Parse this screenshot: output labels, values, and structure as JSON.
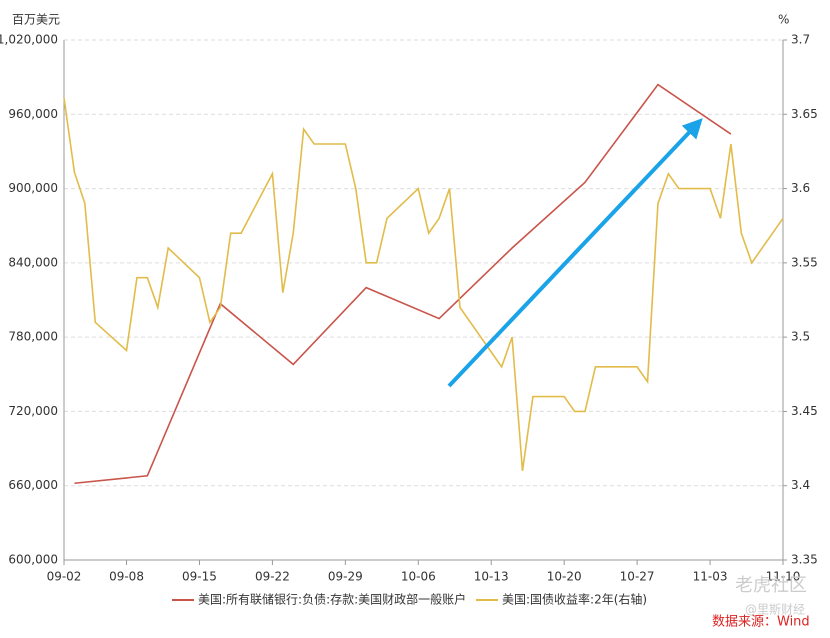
{
  "chart_data": {
    "type": "line",
    "y_label": "百万美元",
    "y2_label": "%",
    "xlim": [
      0,
      69
    ],
    "xticks": [
      {
        "value": 0,
        "label": "09-02"
      },
      {
        "value": 6,
        "label": "09-08"
      },
      {
        "value": 13,
        "label": "09-15"
      },
      {
        "value": 20,
        "label": "09-22"
      },
      {
        "value": 27,
        "label": "09-29"
      },
      {
        "value": 34,
        "label": "10-06"
      },
      {
        "value": 41,
        "label": "10-13"
      },
      {
        "value": 48,
        "label": "10-20"
      },
      {
        "value": 55,
        "label": "10-27"
      },
      {
        "value": 62,
        "label": "11-03"
      },
      {
        "value": 69,
        "label": "11-10"
      }
    ],
    "ylim": [
      600000,
      1020000
    ],
    "yticks": [
      {
        "value": 600000,
        "label": "600,000"
      },
      {
        "value": 660000,
        "label": "660,000"
      },
      {
        "value": 720000,
        "label": "720,000"
      },
      {
        "value": 780000,
        "label": "780,000"
      },
      {
        "value": 840000,
        "label": "840,000"
      },
      {
        "value": 900000,
        "label": "900,000"
      },
      {
        "value": 960000,
        "label": "960,000"
      },
      {
        "value": 1020000,
        "label": "1,020,000"
      }
    ],
    "y2lim": [
      3.35,
      3.7
    ],
    "y2ticks": [
      3.35,
      3.4,
      3.45,
      3.5,
      3.55,
      3.6,
      3.65,
      3.7
    ],
    "grid": true,
    "series": [
      {
        "name": "美国:所有联储银行:负债:存款:美国财政部一般账户",
        "color": "#c9544a",
        "x": [
          1,
          8,
          15,
          22,
          29,
          36,
          43,
          50,
          57,
          64
        ],
        "values": [
          662000,
          668000,
          807000,
          758000,
          820000,
          795000,
          852000,
          905000,
          984000,
          944000
        ]
      },
      {
        "name": "美国:国债收益率:2年(右轴)",
        "color": "#e2bc4a",
        "axis": "y2",
        "x": [
          0,
          1,
          2,
          3,
          6,
          7,
          8,
          9,
          10,
          13,
          14,
          15,
          16,
          17,
          20,
          21,
          22,
          23,
          24,
          27,
          28,
          29,
          30,
          31,
          34,
          35,
          36,
          37,
          38,
          42,
          43,
          44,
          45,
          48,
          49,
          50,
          51,
          55,
          56,
          57,
          58,
          59,
          62,
          63,
          64,
          65,
          66,
          69
        ],
        "values": [
          3.661,
          3.611,
          3.59,
          3.51,
          3.491,
          3.54,
          3.54,
          3.52,
          3.56,
          3.54,
          3.51,
          3.52,
          3.57,
          3.57,
          3.61,
          3.53,
          3.57,
          3.64,
          3.63,
          3.63,
          3.6,
          3.55,
          3.55,
          3.58,
          3.6,
          3.57,
          3.58,
          3.6,
          3.52,
          3.48,
          3.5,
          3.41,
          3.46,
          3.46,
          3.45,
          3.45,
          3.48,
          3.48,
          3.47,
          3.59,
          3.61,
          3.6,
          3.6,
          3.58,
          3.63,
          3.57,
          3.55,
          3.58
        ]
      }
    ],
    "annotations": [
      "老虎社区",
      "@里斯财经",
      "数据来源：Wind"
    ]
  }
}
